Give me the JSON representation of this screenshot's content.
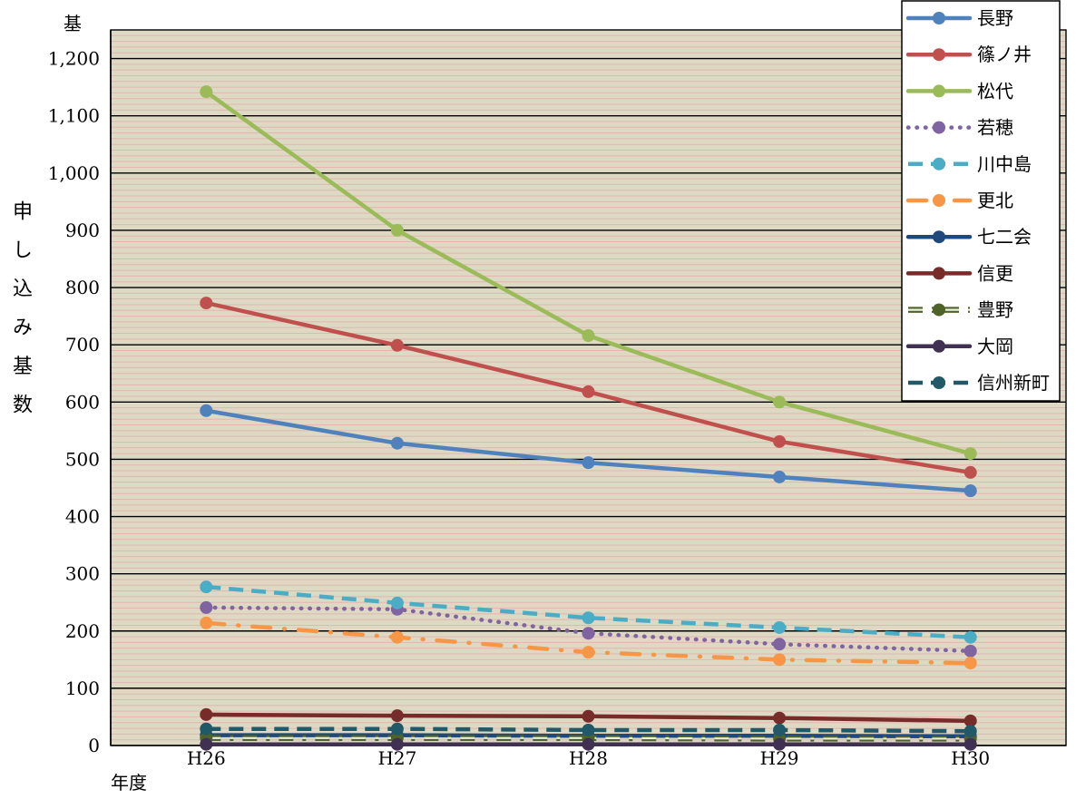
{
  "chart_data": {
    "type": "line",
    "yunit": "基",
    "ylabel": "申し込み基数",
    "xlabel": "年度",
    "categories": [
      "H26",
      "H27",
      "H28",
      "H29",
      "H30"
    ],
    "ylim": [
      0,
      1250
    ],
    "yticks": [
      0,
      100,
      200,
      300,
      400,
      500,
      600,
      700,
      800,
      900,
      1000,
      1100,
      1200
    ],
    "ytick_labels": [
      "0",
      "100",
      "200",
      "300",
      "400",
      "500",
      "600",
      "700",
      "800",
      "900",
      "1,000",
      "1,100",
      "1,200"
    ],
    "grid": true,
    "minor_grid": true,
    "background_color": "#ddd9c3",
    "legend": "top-right",
    "series": [
      {
        "name": "長野",
        "color": "#4f81bd",
        "line_style": "solid",
        "marker": "circle",
        "values": [
          585,
          528,
          494,
          469,
          445
        ]
      },
      {
        "name": "篠ノ井",
        "color": "#c0504d",
        "line_style": "solid",
        "marker": "circle",
        "values": [
          773,
          699,
          618,
          531,
          477
        ]
      },
      {
        "name": "松代",
        "color": "#9bbb59",
        "line_style": "solid",
        "marker": "circle",
        "values": [
          1142,
          900,
          716,
          600,
          510
        ]
      },
      {
        "name": "若穂",
        "color": "#8064a2",
        "line_style": "dotted",
        "marker": "circle",
        "values": [
          241,
          238,
          196,
          177,
          165
        ]
      },
      {
        "name": "川中島",
        "color": "#4bacc6",
        "line_style": "dashed",
        "marker": "circle",
        "values": [
          277,
          249,
          223,
          206,
          189
        ]
      },
      {
        "name": "更北",
        "color": "#f79646",
        "line_style": "dash-dot",
        "marker": "circle",
        "values": [
          214,
          189,
          163,
          150,
          144
        ]
      },
      {
        "name": "七二会",
        "color": "#1f497d",
        "line_style": "solid",
        "marker": "circle",
        "values": [
          18,
          18,
          17,
          17,
          16
        ]
      },
      {
        "name": "信更",
        "color": "#772c2a",
        "line_style": "solid",
        "marker": "circle",
        "values": [
          54,
          52,
          51,
          48,
          43
        ]
      },
      {
        "name": "豊野",
        "color": "#4f6228",
        "line_style": "double-dash-dot",
        "marker": "circle",
        "values": [
          13,
          13,
          13,
          12,
          12
        ]
      },
      {
        "name": "大岡",
        "color": "#403152",
        "line_style": "solid",
        "marker": "circle",
        "values": [
          2,
          2,
          2,
          2,
          2
        ]
      },
      {
        "name": "信州新町",
        "color": "#215968",
        "line_style": "dashed",
        "marker": "circle",
        "values": [
          29,
          29,
          27,
          27,
          25
        ]
      }
    ]
  }
}
